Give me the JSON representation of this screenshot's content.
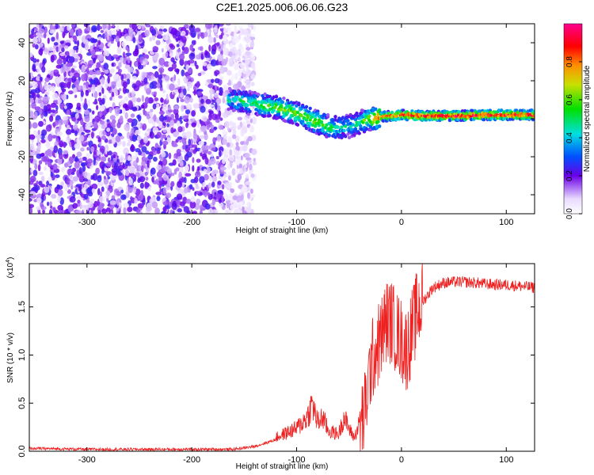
{
  "title": "C2E1.2025.006.06.06.G23",
  "chart_data": [
    {
      "type": "heatmap",
      "xlabel": "Height of straight line (km)",
      "ylabel": "Frequency (Hz)",
      "xlim": [
        -355,
        127
      ],
      "ylim": [
        -50,
        50
      ],
      "xticks": [
        -300,
        -200,
        -100,
        0,
        100
      ],
      "yticks": [
        -40,
        -20,
        0,
        20,
        40
      ],
      "colorbar": {
        "label": "Normalized spectral amplitude",
        "range": [
          0.0,
          1.0
        ],
        "ticks": [
          "0.0",
          "0.2",
          "0.4",
          "0.6",
          "0.8"
        ],
        "tick_values": [
          0.0,
          0.2,
          0.4,
          0.6,
          0.8
        ]
      },
      "ridge": {
        "x": [
          -165,
          -140,
          -120,
          -100,
          -80,
          -65,
          -50,
          -40,
          -30,
          -20,
          0,
          20,
          50,
          80,
          127
        ],
        "y": [
          10,
          8,
          6,
          3,
          -2,
          -5,
          -4,
          -2,
          0,
          1,
          2,
          1.5,
          1.5,
          2,
          2
        ],
        "amplitude": [
          0.45,
          0.55,
          0.6,
          0.62,
          0.65,
          0.55,
          0.4,
          0.5,
          0.7,
          0.85,
          0.9,
          0.95,
          0.95,
          0.95,
          0.9
        ]
      },
      "noise_region_x": [
        -355,
        -160
      ]
    },
    {
      "type": "line",
      "xlabel": "Height of straight line (km)",
      "ylabel": "SNR (10 * v/v)",
      "yscale_label": "(x10",
      "yscale_exp": "4",
      "yscale_suffix": ")",
      "xlim": [
        -355,
        127
      ],
      "ylim": [
        0,
        1.95
      ],
      "xticks": [
        -300,
        -200,
        -100,
        0,
        100
      ],
      "yticks": [
        "0.0",
        "0.5",
        "1.0",
        "1.5"
      ],
      "ytick_values": [
        0.0,
        0.5,
        1.0,
        1.5
      ],
      "series": [
        {
          "name": "SNR",
          "color": "#ee2020",
          "x": [
            -355,
            -300,
            -250,
            -200,
            -160,
            -140,
            -120,
            -100,
            -90,
            -85,
            -80,
            -75,
            -70,
            -60,
            -55,
            -50,
            -45,
            -40,
            -35,
            -30,
            -25,
            -20,
            -15,
            -10,
            -5,
            0,
            5,
            10,
            15,
            20,
            30,
            40,
            50,
            60,
            70,
            80,
            90,
            100,
            110,
            127
          ],
          "y": [
            0.03,
            0.02,
            0.02,
            0.02,
            0.02,
            0.05,
            0.12,
            0.2,
            0.3,
            0.42,
            0.25,
            0.3,
            0.18,
            0.15,
            0.3,
            0.2,
            0.12,
            0.25,
            0.4,
            0.85,
            1.05,
            1.15,
            1.35,
            1.35,
            1.25,
            1.15,
            1.05,
            1.25,
            1.45,
            1.55,
            1.7,
            1.75,
            1.76,
            1.76,
            1.75,
            1.74,
            1.73,
            1.73,
            1.72,
            1.7
          ]
        }
      ]
    }
  ]
}
